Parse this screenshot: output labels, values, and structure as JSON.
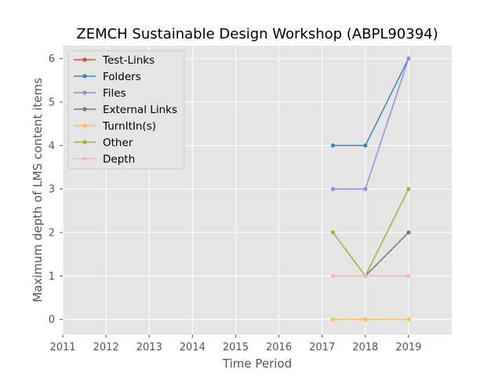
{
  "chart_data": {
    "type": "line",
    "title": "ZEMCH Sustainable Design Workshop (ABPL90394)",
    "xlabel": "Time Period",
    "ylabel": "Maximum depth of LMS content items",
    "xlim": [
      2011,
      2020
    ],
    "ylim": [
      -0.35,
      6.3
    ],
    "x_ticks": [
      "2011",
      "2012",
      "2013",
      "2014",
      "2015",
      "2016",
      "2017",
      "2018",
      "2019"
    ],
    "y_ticks": [
      "0",
      "1",
      "2",
      "3",
      "4",
      "5",
      "6"
    ],
    "grid": true,
    "legend_position": "upper-left",
    "x": [
      2017.25,
      2018,
      2019
    ],
    "series": [
      {
        "name": "Test-Links",
        "color": "#E24A33",
        "values": [
          null,
          null,
          null
        ]
      },
      {
        "name": "Folders",
        "color": "#348ABD",
        "values": [
          4,
          4,
          6
        ]
      },
      {
        "name": "Files",
        "color": "#988ED5",
        "values": [
          3,
          3,
          6
        ]
      },
      {
        "name": "External Links",
        "color": "#777777",
        "values": [
          null,
          1,
          2
        ]
      },
      {
        "name": "TurnItIn(s)",
        "color": "#FBC15E",
        "values": [
          0,
          0,
          0
        ]
      },
      {
        "name": "Other",
        "color": "#8EBA42",
        "values": [
          2,
          1,
          3
        ]
      },
      {
        "name": "Depth",
        "color": "#FFB5B8",
        "values": [
          1,
          1,
          1
        ]
      }
    ]
  }
}
